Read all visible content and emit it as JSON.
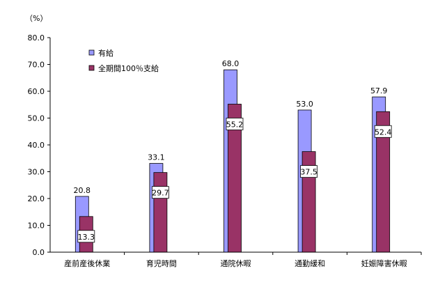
{
  "chart_data": {
    "type": "bar",
    "title": "",
    "xlabel": "",
    "ylabel": "",
    "y_unit_label": "（%）",
    "ylim": [
      0,
      80
    ],
    "yticks": [
      "0.0",
      "10.0",
      "20.0",
      "30.0",
      "40.0",
      "50.0",
      "60.0",
      "70.0",
      "80.0"
    ],
    "grid": false,
    "legend_position": "top-left",
    "categories": [
      "産前産後休業",
      "育児時間",
      "通院休暇",
      "通勤緩和",
      "妊娠障害休暇"
    ],
    "series": [
      {
        "name": "有給",
        "color": "#9999ff",
        "values": [
          20.8,
          33.1,
          68.0,
          53.0,
          57.9
        ],
        "labels": [
          "20.8",
          "33.1",
          "68.0",
          "53.0",
          "57.9"
        ],
        "label_style": "plain"
      },
      {
        "name": "全期間100％支給",
        "color": "#993366",
        "values": [
          13.3,
          29.7,
          55.2,
          37.5,
          52.4
        ],
        "labels": [
          "13.3",
          "29.7",
          "55.2",
          "37.5",
          "52.4"
        ],
        "label_style": "boxed"
      }
    ]
  }
}
